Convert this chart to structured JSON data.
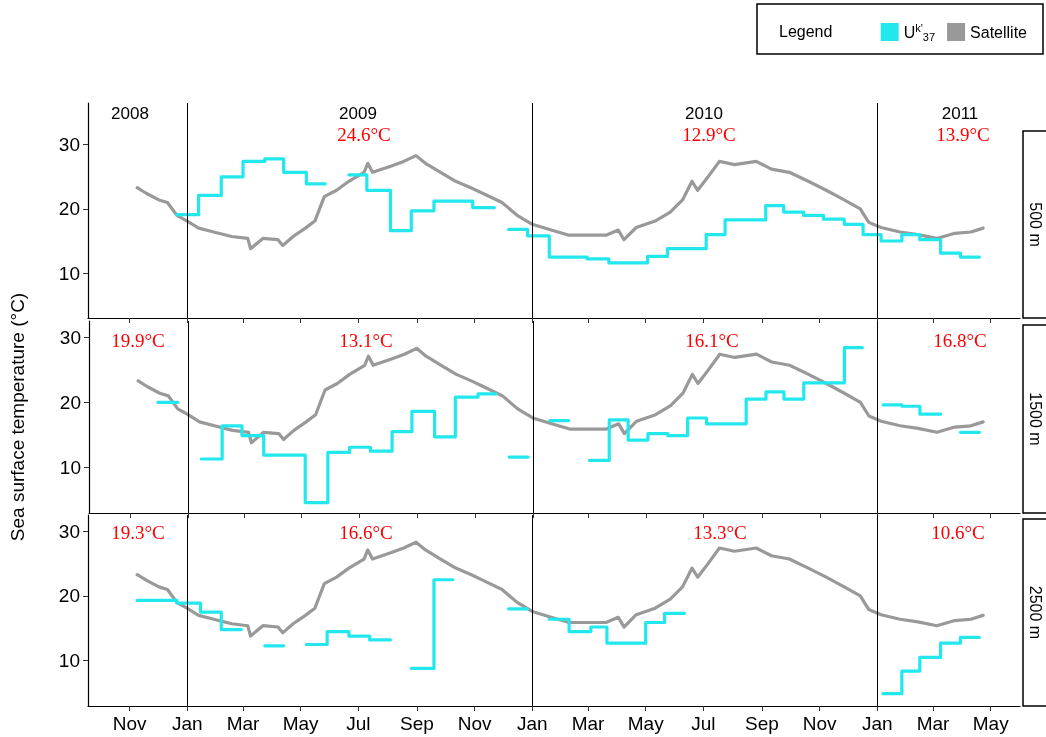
{
  "chart_data": [
    {
      "type": "line",
      "title": "500 m",
      "legend": "top right",
      "legend_title": "Legend",
      "marker": "none",
      "line_style": "solid",
      "xlim": [
        "2008-09-18",
        "2011-06-01"
      ],
      "ylim": [
        3,
        36.5
      ],
      "yticks": [
        10,
        20,
        30
      ],
      "tick_labels": "y",
      "xticks": [
        {
          "value": "2008-11-01",
          "label": null
        },
        {
          "value": "2009-01-01",
          "label": null
        },
        {
          "value": "2009-03-01",
          "label": null
        },
        {
          "value": "2009-05-01",
          "label": null
        },
        {
          "value": "2009-07-01",
          "label": null
        },
        {
          "value": "2009-09-01",
          "label": null
        },
        {
          "value": "2009-11-01",
          "label": null
        },
        {
          "value": "2010-01-01",
          "label": null
        },
        {
          "value": "2010-03-01",
          "label": null
        },
        {
          "value": "2010-05-01",
          "label": null
        },
        {
          "value": "2010-07-01",
          "label": null
        },
        {
          "value": "2010-09-01",
          "label": null
        },
        {
          "value": "2010-11-01",
          "label": null
        },
        {
          "value": "2011-01-01",
          "label": null
        },
        {
          "value": "2011-03-01",
          "label": null
        },
        {
          "value": "2011-05-01",
          "label": null
        }
      ],
      "ref_lines": [
        {
          "axis": "x",
          "value": "2009-01-01",
          "color": "#000000"
        },
        {
          "axis": "x",
          "value": "2010-01-01",
          "color": "#000000"
        },
        {
          "axis": "x",
          "value": "2011-01-01",
          "color": "#000000"
        }
      ],
      "annotations": [
        "2008",
        "2009",
        "2010",
        "2011",
        "24.6°C",
        "12.9°C",
        "13.9°C"
      ],
      "series": [
        {
          "name": "U$^{k'}$$_{37}$",
          "type": "step",
          "color": "#22e8ee",
          "x": [
            "2008-12-21",
            "2009-01-13",
            "2009-02-06",
            "2009-03-01",
            "2009-03-24",
            "2009-04-13",
            "2009-05-07",
            "2009-05-27"
          ],
          "values": [
            19.1,
            22.1,
            25.0,
            27.4,
            27.8,
            25.7,
            23.9,
            23.9
          ]
        },
        {
          "type": "step",
          "color": "#22e8ee",
          "x": [
            "2009-06-21",
            "2009-07-10",
            "2009-08-04",
            "2009-08-26",
            "2009-09-19",
            "2009-10-30",
            "2009-11-22"
          ],
          "values": [
            25.3,
            22.9,
            16.6,
            19.7,
            21.2,
            20.2,
            20.2
          ]
        },
        {
          "type": "step",
          "color": "#22e8ee",
          "x": [
            "2009-12-07",
            "2009-12-27",
            "2010-01-19",
            "2010-02-28",
            "2010-03-23",
            "2010-05-03",
            "2010-05-24",
            "2010-07-04",
            "2010-07-24",
            "2010-09-05",
            "2010-09-24",
            "2010-10-15",
            "2010-11-05",
            "2010-11-27",
            "2010-12-17",
            "2011-01-05",
            "2011-01-27",
            "2011-02-15",
            "2011-03-09",
            "2011-03-30",
            "2011-04-19"
          ],
          "values": [
            16.8,
            15.8,
            12.5,
            12.2,
            11.6,
            12.6,
            13.8,
            16.0,
            18.3,
            20.5,
            19.5,
            19.0,
            18.4,
            17.6,
            16.0,
            15.0,
            16.0,
            15.2,
            13.1,
            12.5,
            12.5
          ]
        },
        {
          "name": "Satellite",
          "color": "#999999",
          "x": [
            "2008-11-09",
            "2008-11-19",
            "2008-12-02",
            "2008-12-11",
            "2008-12-21",
            "2009-01-01",
            "2009-01-13",
            "2009-01-29",
            "2009-02-17",
            "2009-03-06",
            "2009-03-09",
            "2009-03-22",
            "2009-04-07",
            "2009-04-12",
            "2009-04-23",
            "2009-05-06",
            "2009-05-16",
            "2009-05-26",
            "2009-06-08",
            "2009-06-21",
            "2009-07-07",
            "2009-07-11",
            "2009-07-16",
            "2009-08-05",
            "2009-08-18",
            "2009-08-31",
            "2009-09-10",
            "2009-09-26",
            "2009-10-12",
            "2009-10-28",
            "2009-11-10",
            "2009-11-30",
            "2009-12-16",
            "2010-01-01",
            "2010-01-21",
            "2010-02-09",
            "2010-02-28",
            "2010-03-20",
            "2010-04-02",
            "2010-04-08",
            "2010-04-21",
            "2010-05-11",
            "2010-05-27",
            "2010-06-09",
            "2010-06-19",
            "2010-06-25",
            "2010-07-05",
            "2010-07-18",
            "2010-08-03",
            "2010-08-26",
            "2010-09-11",
            "2010-09-30",
            "2010-10-20",
            "2010-11-08",
            "2010-11-27",
            "2010-12-14",
            "2010-12-23",
            "2011-01-05",
            "2011-01-25",
            "2011-02-13",
            "2011-03-05",
            "2011-03-24",
            "2011-04-10",
            "2011-04-23"
          ],
          "values": [
            23.3,
            22.4,
            21.4,
            21.0,
            19.0,
            18.1,
            17.0,
            16.4,
            15.7,
            15.4,
            13.8,
            15.4,
            15.2,
            14.3,
            15.7,
            17.0,
            18.1,
            21.9,
            22.9,
            24.3,
            25.7,
            27.1,
            25.7,
            26.7,
            27.4,
            28.3,
            27.1,
            25.7,
            24.3,
            23.3,
            22.4,
            21.0,
            19.0,
            17.6,
            16.7,
            15.9,
            15.9,
            15.9,
            16.7,
            15.2,
            17.1,
            18.1,
            19.5,
            21.4,
            24.3,
            22.9,
            24.8,
            27.4,
            26.9,
            27.4,
            26.2,
            25.7,
            24.3,
            22.9,
            21.4,
            20.0,
            17.9,
            17.1,
            16.4,
            16.0,
            15.4,
            16.2,
            16.4,
            17.0
          ]
        }
      ]
    },
    {
      "type": "line",
      "title": "1500 m",
      "ylabel": "Sea surface temperature (°C)",
      "marker": "none",
      "line_style": "solid",
      "xlim": [
        "2008-09-18",
        "2011-06-01"
      ],
      "ylim": [
        3,
        32.5
      ],
      "yticks": [
        10,
        20,
        30
      ],
      "tick_labels": "y",
      "xticks": [
        {
          "value": "2008-11-01",
          "label": null
        },
        {
          "value": "2009-01-01",
          "label": null
        },
        {
          "value": "2009-03-01",
          "label": null
        },
        {
          "value": "2009-05-01",
          "label": null
        },
        {
          "value": "2009-07-01",
          "label": null
        },
        {
          "value": "2009-09-01",
          "label": null
        },
        {
          "value": "2009-11-01",
          "label": null
        },
        {
          "value": "2010-01-01",
          "label": null
        },
        {
          "value": "2010-03-01",
          "label": null
        },
        {
          "value": "2010-05-01",
          "label": null
        },
        {
          "value": "2010-07-01",
          "label": null
        },
        {
          "value": "2010-09-01",
          "label": null
        },
        {
          "value": "2010-11-01",
          "label": null
        },
        {
          "value": "2011-01-01",
          "label": null
        },
        {
          "value": "2011-03-01",
          "label": null
        },
        {
          "value": "2011-05-01",
          "label": null
        }
      ],
      "ref_lines": [
        {
          "axis": "x",
          "value": "2009-01-01",
          "color": "#000000"
        },
        {
          "axis": "x",
          "value": "2010-01-01",
          "color": "#000000"
        },
        {
          "axis": "x",
          "value": "2011-01-01",
          "color": "#000000"
        }
      ],
      "annotations": [
        "19.9°C",
        "13.1°C",
        "16.1°C",
        "16.8°C"
      ],
      "series": [
        {
          "type": "step",
          "color": "#22e8ee",
          "x": [
            "2008-11-30",
            "2008-12-21"
          ],
          "values": [
            20.0,
            20.0
          ]
        },
        {
          "type": "step",
          "color": "#22e8ee",
          "x": [
            "2009-01-15",
            "2009-02-06",
            "2009-02-27",
            "2009-03-22",
            "2009-05-05",
            "2009-05-29",
            "2009-06-21",
            "2009-07-13",
            "2009-08-05",
            "2009-08-26",
            "2009-09-19",
            "2009-10-11",
            "2009-11-04",
            "2009-11-23"
          ],
          "values": [
            11.3,
            16.4,
            14.9,
            11.9,
            4.6,
            12.3,
            13.1,
            12.5,
            15.5,
            18.6,
            14.7,
            20.8,
            21.3,
            21.3
          ]
        },
        {
          "type": "step",
          "color": "#22e8ee",
          "x": [
            "2009-12-07",
            "2009-12-27"
          ],
          "values": [
            11.6,
            11.6
          ]
        },
        {
          "type": "step",
          "color": "#22e8ee",
          "x": [
            "2010-01-19",
            "2010-02-08"
          ],
          "values": [
            17.2,
            17.2
          ]
        },
        {
          "type": "step",
          "color": "#22e8ee",
          "x": [
            "2010-03-02",
            "2010-03-23",
            "2010-04-12",
            "2010-05-03",
            "2010-05-24",
            "2010-06-14",
            "2010-07-04",
            "2010-08-15",
            "2010-09-05",
            "2010-09-24",
            "2010-10-15",
            "2010-11-27",
            "2010-12-16"
          ],
          "values": [
            11.1,
            17.3,
            14.2,
            15.2,
            14.9,
            17.6,
            16.7,
            20.5,
            21.6,
            20.5,
            23.0,
            28.4,
            28.4
          ]
        },
        {
          "type": "step",
          "color": "#22e8ee",
          "x": [
            "2011-01-07",
            "2011-01-27",
            "2011-02-15",
            "2011-03-09"
          ],
          "values": [
            19.6,
            19.4,
            18.2,
            18.2
          ]
        },
        {
          "type": "step",
          "color": "#22e8ee",
          "x": [
            "2011-03-30",
            "2011-04-19"
          ],
          "values": [
            15.4,
            15.4
          ]
        },
        {
          "color": "#999999",
          "x": [
            "2008-11-09",
            "2008-11-19",
            "2008-12-02",
            "2008-12-11",
            "2008-12-21",
            "2009-01-01",
            "2009-01-13",
            "2009-01-29",
            "2009-02-17",
            "2009-03-06",
            "2009-03-09",
            "2009-03-22",
            "2009-04-07",
            "2009-04-12",
            "2009-04-23",
            "2009-05-06",
            "2009-05-16",
            "2009-05-26",
            "2009-06-08",
            "2009-06-21",
            "2009-07-07",
            "2009-07-11",
            "2009-07-16",
            "2009-08-05",
            "2009-08-18",
            "2009-08-31",
            "2009-09-10",
            "2009-09-26",
            "2009-10-12",
            "2009-10-28",
            "2009-11-10",
            "2009-11-30",
            "2009-12-16",
            "2010-01-01",
            "2010-01-21",
            "2010-02-09",
            "2010-02-28",
            "2010-03-20",
            "2010-04-02",
            "2010-04-08",
            "2010-04-21",
            "2010-05-11",
            "2010-05-27",
            "2010-06-09",
            "2010-06-19",
            "2010-06-25",
            "2010-07-05",
            "2010-07-18",
            "2010-08-03",
            "2010-08-26",
            "2010-09-11",
            "2010-09-30",
            "2010-10-20",
            "2010-11-08",
            "2010-11-27",
            "2010-12-14",
            "2010-12-23",
            "2011-01-05",
            "2011-01-25",
            "2011-02-13",
            "2011-03-05",
            "2011-03-24",
            "2011-04-10",
            "2011-04-23"
          ],
          "values": [
            23.3,
            22.4,
            21.4,
            21.0,
            19.0,
            18.1,
            17.0,
            16.4,
            15.7,
            15.4,
            13.8,
            15.4,
            15.2,
            14.3,
            15.7,
            17.0,
            18.1,
            21.9,
            22.9,
            24.3,
            25.7,
            27.1,
            25.7,
            26.7,
            27.4,
            28.3,
            27.1,
            25.7,
            24.3,
            23.3,
            22.4,
            21.0,
            19.0,
            17.6,
            16.7,
            15.9,
            15.9,
            15.9,
            16.7,
            15.2,
            17.1,
            18.1,
            19.5,
            21.4,
            24.3,
            22.9,
            24.8,
            27.4,
            26.9,
            27.4,
            26.2,
            25.7,
            24.3,
            22.9,
            21.4,
            20.0,
            17.9,
            17.1,
            16.4,
            16.0,
            15.4,
            16.2,
            16.4,
            17.0
          ]
        }
      ]
    },
    {
      "type": "line",
      "title": "2500 m",
      "marker": "none",
      "line_style": "solid",
      "xlim": [
        "2008-09-18",
        "2011-06-01"
      ],
      "ylim": [
        3,
        32.5
      ],
      "yticks": [
        10,
        20,
        30
      ],
      "xticks": [
        {
          "value": "2008-11-01",
          "label": "Nov"
        },
        {
          "value": "2009-01-01",
          "label": "Jan"
        },
        {
          "value": "2009-03-01",
          "label": "Mar"
        },
        {
          "value": "2009-05-01",
          "label": "May"
        },
        {
          "value": "2009-07-01",
          "label": "Jul"
        },
        {
          "value": "2009-09-01",
          "label": "Sep"
        },
        {
          "value": "2009-11-01",
          "label": "Nov"
        },
        {
          "value": "2010-01-01",
          "label": "Jan"
        },
        {
          "value": "2010-03-01",
          "label": "Mar"
        },
        {
          "value": "2010-05-01",
          "label": "May"
        },
        {
          "value": "2010-07-01",
          "label": "Jul"
        },
        {
          "value": "2010-09-01",
          "label": "Sep"
        },
        {
          "value": "2010-11-01",
          "label": "Nov"
        },
        {
          "value": "2011-01-01",
          "label": "Jan"
        },
        {
          "value": "2011-03-01",
          "label": "Mar"
        },
        {
          "value": "2011-05-01",
          "label": "May"
        }
      ],
      "ref_lines": [
        {
          "axis": "x",
          "value": "2009-01-01",
          "color": "#000000"
        },
        {
          "axis": "x",
          "value": "2010-01-01",
          "color": "#000000"
        },
        {
          "axis": "x",
          "value": "2011-01-01",
          "color": "#000000"
        }
      ],
      "annotations": [
        "19.3°C",
        "16.6°C",
        "13.3°C",
        "10.6°C"
      ],
      "series": [
        {
          "type": "step",
          "color": "#22e8ee",
          "x": [
            "2008-11-09",
            "2008-12-21",
            "2009-01-15",
            "2009-02-06",
            "2009-02-27"
          ],
          "values": [
            19.3,
            18.9,
            17.5,
            14.8,
            14.8
          ]
        },
        {
          "type": "step",
          "color": "#22e8ee",
          "x": [
            "2009-03-24",
            "2009-04-13"
          ],
          "values": [
            12.3,
            12.3
          ]
        },
        {
          "type": "step",
          "color": "#22e8ee",
          "x": [
            "2009-05-07",
            "2009-05-29",
            "2009-06-21",
            "2009-07-13",
            "2009-08-04"
          ],
          "values": [
            12.5,
            14.5,
            13.8,
            13.2,
            13.2
          ]
        },
        {
          "type": "step",
          "color": "#22e8ee",
          "x": [
            "2009-08-26",
            "2009-09-19",
            "2009-10-09"
          ],
          "values": [
            8.8,
            22.5,
            22.5
          ]
        },
        {
          "type": "step",
          "color": "#22e8ee",
          "x": [
            "2009-12-07",
            "2009-12-27"
          ],
          "values": [
            18.0,
            18.0
          ]
        },
        {
          "type": "step",
          "color": "#22e8ee",
          "x": [
            "2010-01-19",
            "2010-02-09",
            "2010-03-04",
            "2010-03-21",
            "2010-05-01",
            "2010-05-21",
            "2010-06-11"
          ],
          "values": [
            16.4,
            14.5,
            15.2,
            12.7,
            15.9,
            17.3,
            17.3
          ]
        },
        {
          "type": "step",
          "color": "#22e8ee",
          "x": [
            "2011-01-07",
            "2011-01-27",
            "2011-02-15",
            "2011-03-09",
            "2011-03-30",
            "2011-04-19"
          ],
          "values": [
            4.9,
            8.4,
            10.5,
            12.7,
            13.6,
            13.6
          ]
        },
        {
          "color": "#999999",
          "x": [
            "2008-11-09",
            "2008-11-19",
            "2008-12-02",
            "2008-12-11",
            "2008-12-21",
            "2009-01-01",
            "2009-01-13",
            "2009-01-29",
            "2009-02-17",
            "2009-03-06",
            "2009-03-09",
            "2009-03-22",
            "2009-04-07",
            "2009-04-12",
            "2009-04-23",
            "2009-05-06",
            "2009-05-16",
            "2009-05-26",
            "2009-06-08",
            "2009-06-21",
            "2009-07-07",
            "2009-07-11",
            "2009-07-16",
            "2009-08-05",
            "2009-08-18",
            "2009-08-31",
            "2009-09-10",
            "2009-09-26",
            "2009-10-12",
            "2009-10-28",
            "2009-11-10",
            "2009-11-30",
            "2009-12-16",
            "2010-01-01",
            "2010-01-21",
            "2010-02-09",
            "2010-02-28",
            "2010-03-20",
            "2010-04-02",
            "2010-04-08",
            "2010-04-21",
            "2010-05-11",
            "2010-05-27",
            "2010-06-09",
            "2010-06-19",
            "2010-06-25",
            "2010-07-05",
            "2010-07-18",
            "2010-08-03",
            "2010-08-26",
            "2010-09-11",
            "2010-09-30",
            "2010-10-20",
            "2010-11-08",
            "2010-11-27",
            "2010-12-14",
            "2010-12-23",
            "2011-01-05",
            "2011-01-25",
            "2011-02-13",
            "2011-03-05",
            "2011-03-24",
            "2011-04-10",
            "2011-04-23"
          ],
          "values": [
            23.3,
            22.4,
            21.4,
            21.0,
            19.0,
            18.1,
            17.0,
            16.4,
            15.7,
            15.4,
            13.8,
            15.4,
            15.2,
            14.3,
            15.7,
            17.0,
            18.1,
            21.9,
            22.9,
            24.3,
            25.7,
            27.1,
            25.7,
            26.7,
            27.4,
            28.3,
            27.1,
            25.7,
            24.3,
            23.3,
            22.4,
            21.0,
            19.0,
            17.6,
            16.7,
            15.9,
            15.9,
            15.9,
            16.7,
            15.2,
            17.1,
            18.1,
            19.5,
            21.4,
            24.3,
            22.9,
            24.8,
            27.4,
            26.9,
            27.4,
            26.2,
            25.7,
            24.3,
            22.9,
            21.4,
            20.0,
            17.9,
            17.1,
            16.4,
            16.0,
            15.4,
            16.2,
            16.4,
            17.0
          ]
        }
      ]
    }
  ]
}
